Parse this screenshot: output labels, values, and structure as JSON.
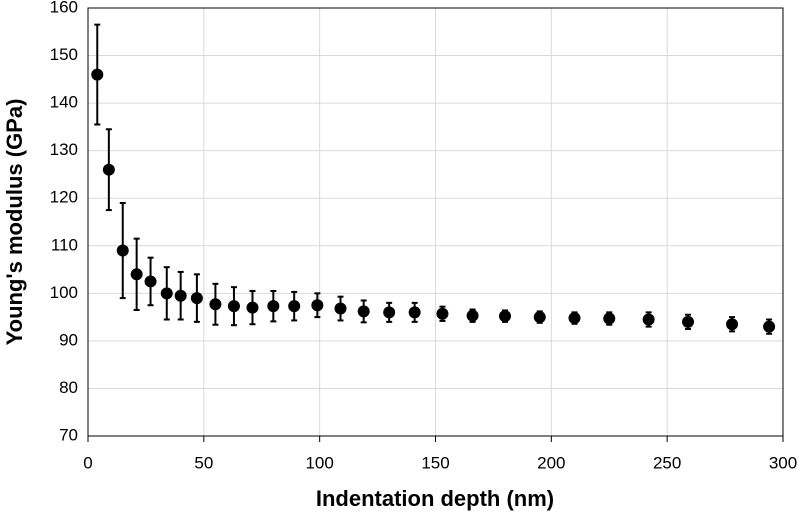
{
  "chart_data": {
    "type": "scatter",
    "x_label": "Indentation depth (nm)",
    "y_label": "Young's modulus (GPa)",
    "x": [
      4,
      9,
      15,
      21,
      27,
      34,
      40,
      47,
      55,
      63,
      71,
      80,
      89,
      99,
      109,
      119,
      130,
      141,
      153,
      166,
      180,
      195,
      210,
      225,
      242,
      259,
      278,
      294
    ],
    "values": [
      146,
      126,
      109,
      104,
      102.5,
      100,
      99.5,
      99,
      97.7,
      97.3,
      97,
      97.3,
      97.3,
      97.5,
      96.8,
      96.2,
      96,
      96,
      95.7,
      95.3,
      95.2,
      95,
      94.8,
      94.7,
      94.5,
      94,
      93.5,
      93
    ],
    "errors": [
      10.5,
      8.5,
      10,
      7.5,
      5,
      5.5,
      5,
      5,
      4.3,
      4,
      3.5,
      3.2,
      3,
      2.5,
      2.5,
      2.3,
      2,
      2,
      1.5,
      1.3,
      1.2,
      1.2,
      1.2,
      1.3,
      1.5,
      1.5,
      1.5,
      1.5
    ],
    "color": "#000000",
    "xlim": [
      0,
      300
    ],
    "xticks": [
      0,
      50,
      100,
      150,
      200,
      250,
      300
    ],
    "ylim": [
      70,
      160
    ],
    "yticks": [
      70,
      80,
      90,
      100,
      110,
      120,
      130,
      140,
      150,
      160
    ],
    "grid": true
  }
}
